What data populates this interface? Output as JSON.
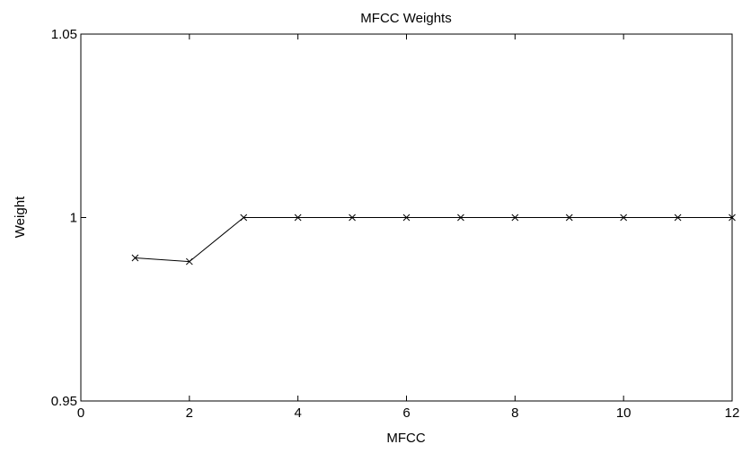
{
  "chart_data": {
    "type": "line",
    "title": "MFCC Weights",
    "xlabel": "MFCC",
    "ylabel": "Weight",
    "xlim": [
      0,
      12
    ],
    "ylim": [
      0.95,
      1.05
    ],
    "x_ticks": [
      0,
      2,
      4,
      6,
      8,
      10,
      12
    ],
    "x_tick_labels": [
      "0",
      "2",
      "4",
      "6",
      "8",
      "10",
      "12"
    ],
    "y_ticks": [
      0.95,
      1,
      1.05
    ],
    "y_tick_labels": [
      "0.95",
      "1",
      "1.05"
    ],
    "grid": false,
    "marker": "x",
    "line_color": "#000000",
    "series": [
      {
        "x": [
          1,
          2,
          3,
          4,
          5,
          6,
          7,
          8,
          9,
          10,
          11,
          12
        ],
        "values": [
          0.989,
          0.988,
          1.0,
          1.0,
          1.0,
          1.0,
          1.0,
          1.0,
          1.0,
          1.0,
          1.0,
          1.0
        ]
      }
    ]
  }
}
